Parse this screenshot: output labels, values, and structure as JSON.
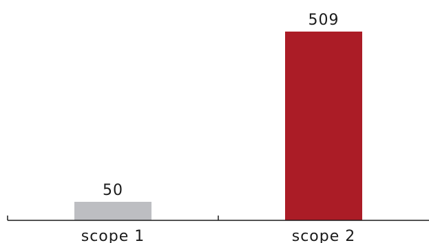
{
  "chart_data": {
    "type": "bar",
    "categories": [
      "scope 1",
      "scope 2"
    ],
    "values": [
      50,
      509
    ],
    "data_labels": [
      "50",
      "509"
    ],
    "bar_colors": [
      "#bdbec2",
      "#ab1c26"
    ],
    "axis_color": "#1a1a1a",
    "title": "",
    "xlabel": "",
    "ylabel": "",
    "ylim": [
      0,
      509
    ],
    "grid": false,
    "legend": "none"
  }
}
